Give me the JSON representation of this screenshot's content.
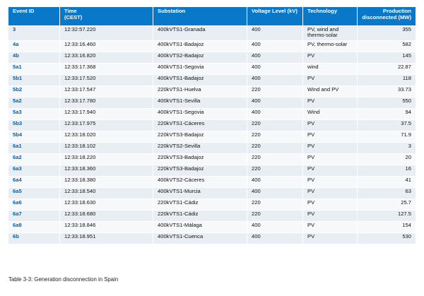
{
  "table": {
    "headers": {
      "event_id": "Event ID",
      "time": "Time",
      "time_unit": "(CEST)",
      "substation": "Substation",
      "voltage": "Voltage Level (kV)",
      "technology": "Technology",
      "production": "Production",
      "production_unit": "disconnected (MW)"
    },
    "rows": [
      {
        "id": "3",
        "time": "12:32:57.220",
        "substation": "400kVTS1-Granada",
        "voltage": "400",
        "tech": "PV, wind and thermo-solar",
        "mw": "355"
      },
      {
        "id": "4a",
        "time": "12:33:16.460",
        "substation": "400kVTS1-Badajoz",
        "voltage": "400",
        "tech": "PV, thermo-solar",
        "mw": "582"
      },
      {
        "id": "4b",
        "time": "12:33:16.820",
        "substation": "400kVTS2-Badajoz",
        "voltage": "400",
        "tech": "PV",
        "mw": "145"
      },
      {
        "id": "5a1",
        "time": "12:33:17.368",
        "substation": "400kVTS1-Segovia",
        "voltage": "400",
        "tech": "wind",
        "mw": "22.87"
      },
      {
        "id": "5b1",
        "time": "12:33:17.520",
        "substation": "400kVTS1-Badajoz",
        "voltage": "400",
        "tech": "PV",
        "mw": "118"
      },
      {
        "id": "5b2",
        "time": "12:33:17.547",
        "substation": "220kVTS1-Huelva",
        "voltage": "220",
        "tech": "Wind and PV",
        "mw": "33.73"
      },
      {
        "id": "5a2",
        "time": "12:33:17.780",
        "substation": "400kVTS1-Sevilla",
        "voltage": "400",
        "tech": "PV",
        "mw": "550"
      },
      {
        "id": "5a3",
        "time": "12:33:17.940",
        "substation": "400kVTS1-Segovia",
        "voltage": "400",
        "tech": "Wind",
        "mw": "94"
      },
      {
        "id": "5b3",
        "time": "12:33:17.975",
        "substation": "220kVTS1-Cáceres",
        "voltage": "220",
        "tech": "PV",
        "mw": "37.5"
      },
      {
        "id": "5b4",
        "time": "12:33:18.020",
        "substation": "220kVTS3-Badajoz",
        "voltage": "220",
        "tech": "PV",
        "mw": "71.9"
      },
      {
        "id": "6a1",
        "time": "12:33:18.102",
        "substation": "220kVTS2-Sevilla",
        "voltage": "220",
        "tech": "PV",
        "mw": "3"
      },
      {
        "id": "6a2",
        "time": "12:33:18.220",
        "substation": "220kVTS3-Badajoz",
        "voltage": "220",
        "tech": "PV",
        "mw": "20"
      },
      {
        "id": "6a3",
        "time": "12:33:18.360",
        "substation": "220kVTS3-Badajoz",
        "voltage": "220",
        "tech": "PV",
        "mw": "16"
      },
      {
        "id": "6a4",
        "time": "12:33:18.380",
        "substation": "400kVTS2-Cáceres",
        "voltage": "400",
        "tech": "PV",
        "mw": "41"
      },
      {
        "id": "6a5",
        "time": "12:33:18.540",
        "substation": "400kVTS1-Murcia",
        "voltage": "400",
        "tech": "PV",
        "mw": "63"
      },
      {
        "id": "6a6",
        "time": "12:33:18.630",
        "substation": "220kVTS1-Cádiz",
        "voltage": "220",
        "tech": "PV",
        "mw": "25.7"
      },
      {
        "id": "6a7",
        "time": "12:33:18.680",
        "substation": "220kVTS1-Cádiz",
        "voltage": "220",
        "tech": "PV",
        "mw": "127.5"
      },
      {
        "id": "6a8",
        "time": "12:33:18.846",
        "substation": "400kVTS1-Málaga",
        "voltage": "400",
        "tech": "PV",
        "mw": "154"
      },
      {
        "id": "6b",
        "time": "12:33:18.951",
        "substation": "400kVTS1-Cuenca",
        "voltage": "400",
        "tech": "PV",
        "mw": "530"
      }
    ]
  },
  "caption": "Table 3-3: Generation disconnection in Spain",
  "colors": {
    "header_bg": "#0a78c9",
    "row_odd": "#e9eef5",
    "row_even": "#f7f8fa",
    "id_text": "#0a5ea8"
  }
}
